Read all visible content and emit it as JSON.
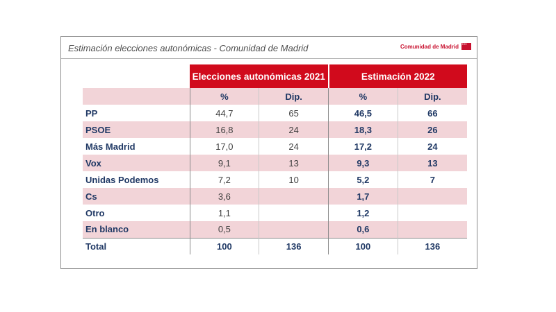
{
  "header": {
    "title": "Estimación elecciones autonómicas - Comunidad de Madrid",
    "logo_text": "Comunidad de Madrid"
  },
  "colors": {
    "accent": "#d10a1c",
    "row_alt": "#f2d4d8",
    "label": "#1f3864"
  },
  "chart_data": {
    "type": "table",
    "title": "Estimación elecciones autonómicas - Comunidad de Madrid",
    "column_groups": [
      "Elecciones autonómicas 2021",
      "Estimación 2022"
    ],
    "columns": [
      "%",
      "Dip.",
      "%",
      "Dip."
    ],
    "rows": [
      {
        "party": "PP",
        "pct_2021": "44,7",
        "dip_2021": "65",
        "pct_2022": "46,5",
        "dip_2022": "66"
      },
      {
        "party": "PSOE",
        "pct_2021": "16,8",
        "dip_2021": "24",
        "pct_2022": "18,3",
        "dip_2022": "26"
      },
      {
        "party": "Más Madrid",
        "pct_2021": "17,0",
        "dip_2021": "24",
        "pct_2022": "17,2",
        "dip_2022": "24"
      },
      {
        "party": "Vox",
        "pct_2021": "9,1",
        "dip_2021": "13",
        "pct_2022": "9,3",
        "dip_2022": "13"
      },
      {
        "party": "Unidas Podemos",
        "pct_2021": "7,2",
        "dip_2021": "10",
        "pct_2022": "5,2",
        "dip_2022": "7"
      },
      {
        "party": "Cs",
        "pct_2021": "3,6",
        "dip_2021": "",
        "pct_2022": "1,7",
        "dip_2022": ""
      },
      {
        "party": "Otro",
        "pct_2021": "1,1",
        "dip_2021": "",
        "pct_2022": "1,2",
        "dip_2022": ""
      },
      {
        "party": "En blanco",
        "pct_2021": "0,5",
        "dip_2021": "",
        "pct_2022": "0,6",
        "dip_2022": ""
      }
    ],
    "total": {
      "party": "Total",
      "pct_2021": "100",
      "dip_2021": "136",
      "pct_2022": "100",
      "dip_2022": "136"
    }
  }
}
